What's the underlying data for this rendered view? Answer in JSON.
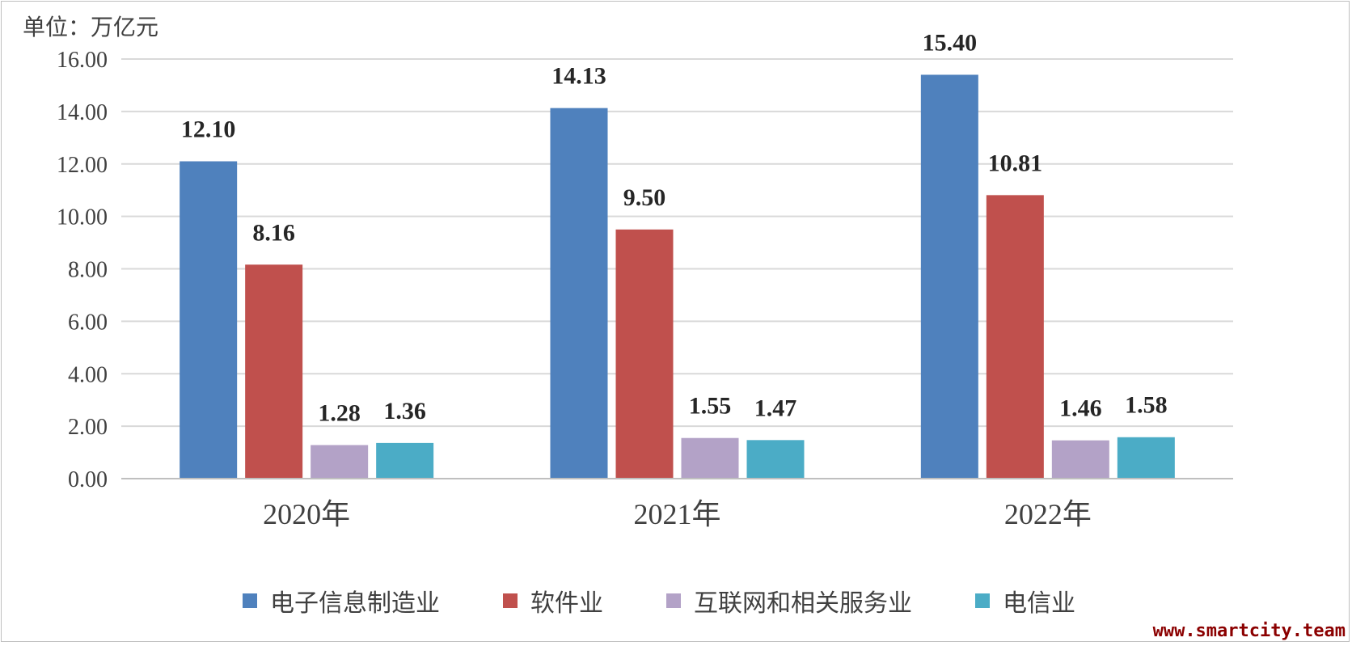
{
  "unit_label": "单位：万亿元",
  "watermark": "www.smartcity.team",
  "chart_data": {
    "type": "bar",
    "categories": [
      "2020年",
      "2021年",
      "2022年"
    ],
    "series": [
      {
        "name": "电子信息制造业",
        "values": [
          12.1,
          14.13,
          15.4
        ],
        "color": "#4f81bd"
      },
      {
        "name": "软件业",
        "values": [
          8.16,
          9.5,
          10.81
        ],
        "color": "#c0504d"
      },
      {
        "name": "互联网和相关服务业",
        "values": [
          1.28,
          1.55,
          1.46
        ],
        "color": "#b3a2c7"
      },
      {
        "name": "电信业",
        "values": [
          1.36,
          1.47,
          1.58
        ],
        "color": "#4bacc6"
      }
    ],
    "value_labels": [
      [
        "12.10",
        "14.13",
        "15.40"
      ],
      [
        "8.16",
        "9.50",
        "10.81"
      ],
      [
        "1.28",
        "1.55",
        "1.46"
      ],
      [
        "1.36",
        "1.47",
        "1.58"
      ]
    ],
    "yticks": [
      "0.00",
      "2.00",
      "4.00",
      "6.00",
      "8.00",
      "10.00",
      "12.00",
      "14.00",
      "16.00"
    ],
    "ylim": [
      0,
      16
    ],
    "grid": true,
    "legend_position": "bottom"
  }
}
